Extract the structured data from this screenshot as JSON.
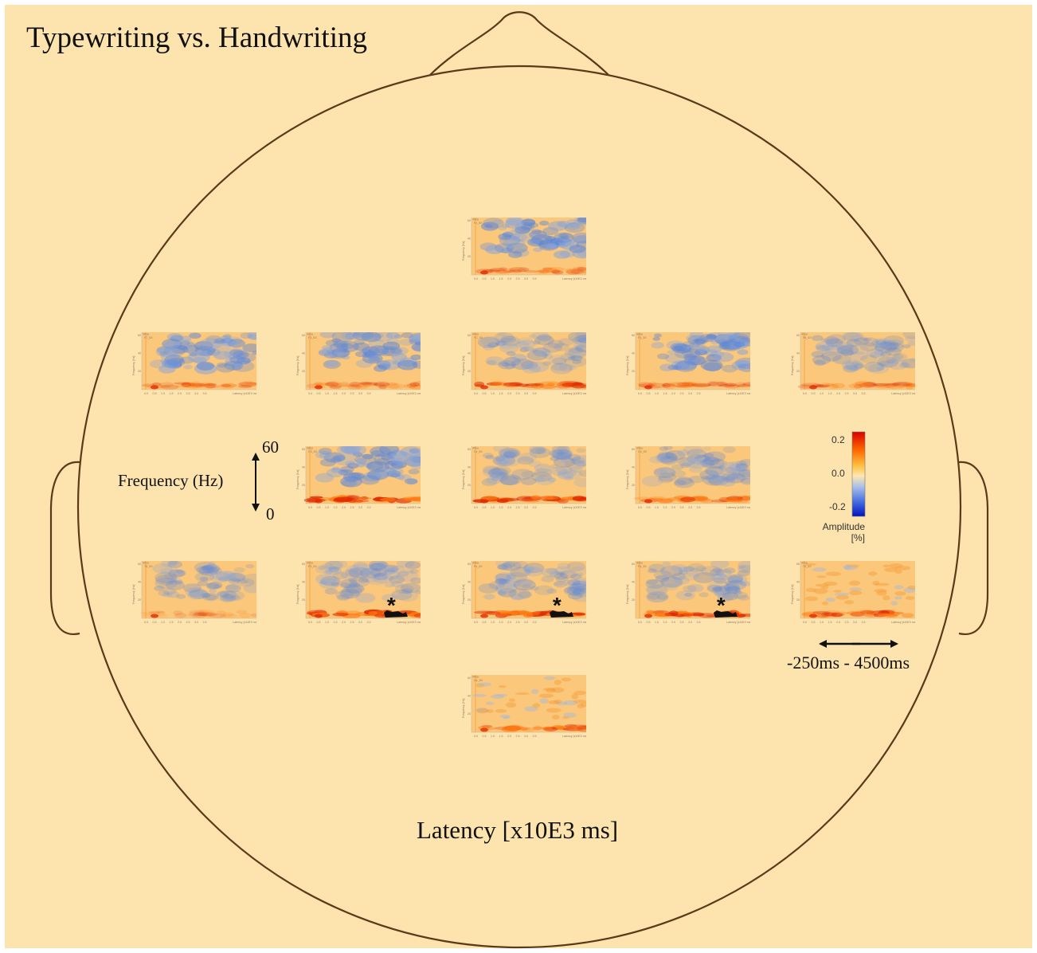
{
  "title": "Typewriting vs. Handwriting",
  "x_axis_label": "Latency [x10E3 ms]",
  "freq_legend": {
    "label": "Frequency (Hz)",
    "top": "60",
    "bottom": "0"
  },
  "time_range": "-250ms - 4500ms",
  "colorbar": {
    "ticks": [
      "0.2",
      "0.0",
      "-0.2"
    ],
    "caption_line1": "Amplitude",
    "caption_line2": "[%]",
    "colors": [
      "#d80000",
      "#ff6a00",
      "#ffc040",
      "#ffe7b0",
      "#a9c0e8",
      "#4a72e0",
      "#0014c0"
    ]
  },
  "panel_text": {
    "corner": "4tina",
    "ylabel": "Frequency [Hz]",
    "xlabel": "Latency [x10E3 ms]",
    "yticks": [
      "60",
      "40",
      "20"
    ],
    "xticks": [
      "0.0",
      "0.5",
      "1.0",
      "1.5",
      "2.0",
      "2.5",
      "3.0",
      "3.5"
    ]
  },
  "panels": [
    {
      "id": "Fz",
      "row": 0,
      "col": 2,
      "channel": "Fz_5X",
      "upper": "blue-strong",
      "band": "weak",
      "sig": false
    },
    {
      "id": "F7",
      "row": 1,
      "col": 0,
      "channel": "F7_5X",
      "upper": "blue-strong",
      "band": "weak",
      "sig": false
    },
    {
      "id": "F3",
      "row": 1,
      "col": 1,
      "channel": "F3_5X",
      "upper": "blue-strong",
      "band": "weak",
      "sig": false
    },
    {
      "id": "FC",
      "row": 1,
      "col": 2,
      "channel": "FC_5X",
      "upper": "blue-weak",
      "band": "medium",
      "sig": false
    },
    {
      "id": "F4",
      "row": 1,
      "col": 3,
      "channel": "F4_5X",
      "upper": "blue-strong",
      "band": "weak",
      "sig": false
    },
    {
      "id": "F8",
      "row": 1,
      "col": 4,
      "channel": "F8_5X",
      "upper": "blue-weak",
      "band": "weak",
      "sig": false
    },
    {
      "id": "C3",
      "row": 2,
      "col": 1,
      "channel": "C3_5X",
      "upper": "blue-strong",
      "band": "strong",
      "sig": false
    },
    {
      "id": "Cz",
      "row": 2,
      "col": 2,
      "channel": "Cz_5X",
      "upper": "blue-weak",
      "band": "strong",
      "sig": false
    },
    {
      "id": "C4",
      "row": 2,
      "col": 3,
      "channel": "C4_5X",
      "upper": "blue-weak",
      "band": "medium",
      "sig": false
    },
    {
      "id": "T5",
      "row": 3,
      "col": 0,
      "channel": "T5_5X",
      "upper": "blue-weak",
      "band": "none",
      "sig": false
    },
    {
      "id": "P3",
      "row": 3,
      "col": 1,
      "channel": "P3_5X",
      "upper": "blue-weak",
      "band": "strong",
      "sig": true
    },
    {
      "id": "Pz",
      "row": 3,
      "col": 2,
      "channel": "Pz_5X",
      "upper": "blue-weak",
      "band": "strong",
      "sig": true
    },
    {
      "id": "P4",
      "row": 3,
      "col": 3,
      "channel": "P4_5X",
      "upper": "blue-weak",
      "band": "strong",
      "sig": true
    },
    {
      "id": "T6",
      "row": 3,
      "col": 4,
      "channel": "T6_5X",
      "upper": "orange",
      "band": "medium",
      "sig": false
    },
    {
      "id": "Oz",
      "row": 4,
      "col": 2,
      "channel": "Oz_5X",
      "upper": "orange",
      "band": "medium",
      "sig": false
    }
  ],
  "significance_marker": "*"
}
